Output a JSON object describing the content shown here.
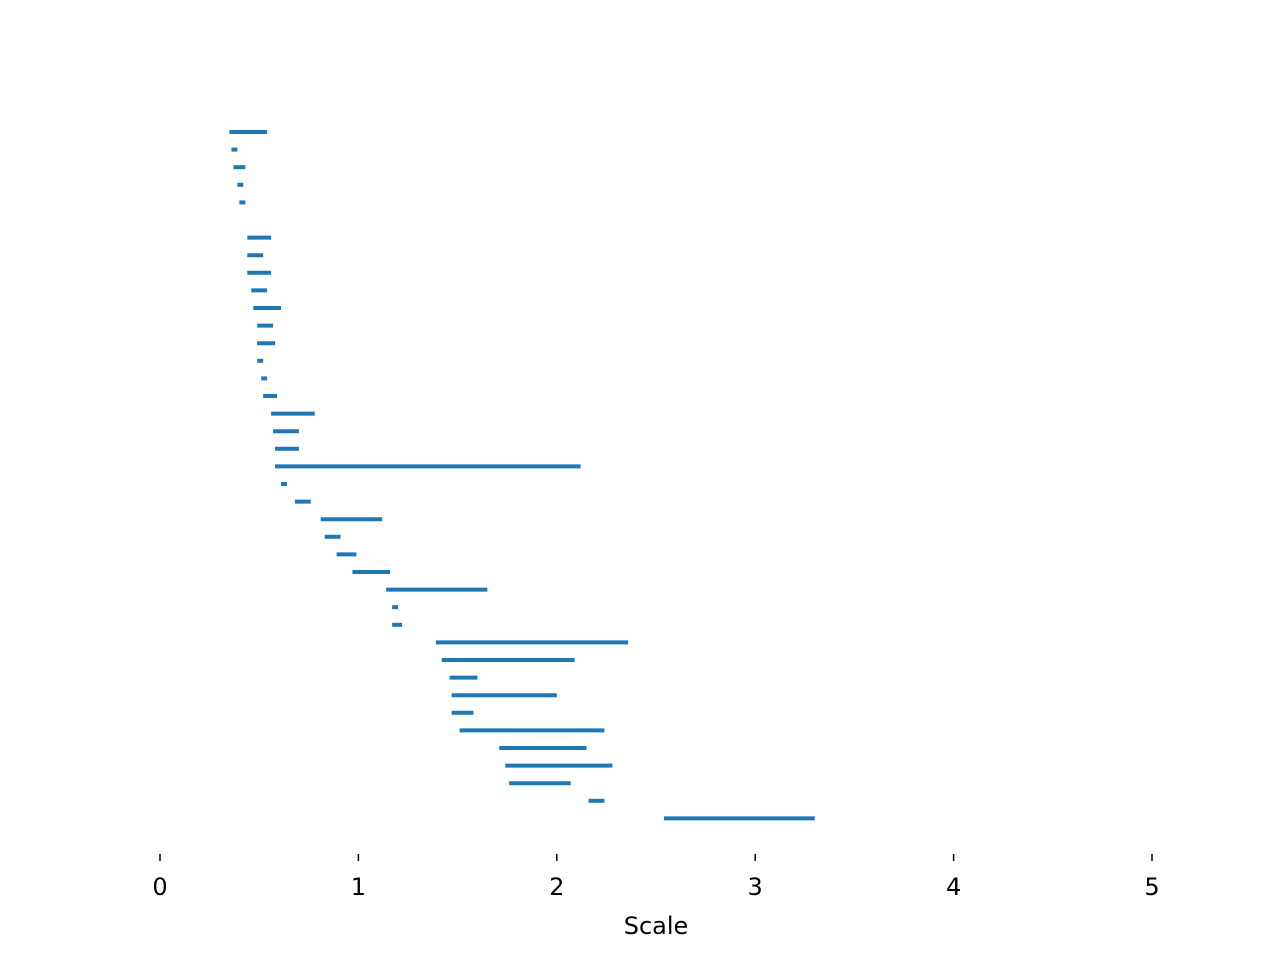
{
  "chart_data": {
    "type": "range",
    "x_label": "Scale",
    "color": "#1f77b4",
    "starts": [
      0.35,
      0.36,
      0.37,
      0.39,
      0.4,
      null,
      0.44,
      0.44,
      0.44,
      0.46,
      0.47,
      0.49,
      0.49,
      0.49,
      0.51,
      0.52,
      0.56,
      0.57,
      0.58,
      0.58,
      0.61,
      0.68,
      0.81,
      0.83,
      0.89,
      0.97,
      1.14,
      1.17,
      1.17,
      1.39,
      1.42,
      1.46,
      1.47,
      1.47,
      1.51,
      1.71,
      1.74,
      1.76,
      2.16,
      2.54
    ],
    "ends": [
      0.54,
      0.39,
      0.43,
      0.42,
      0.43,
      null,
      0.56,
      0.52,
      0.56,
      0.54,
      0.61,
      0.57,
      0.58,
      0.52,
      0.54,
      0.59,
      0.78,
      0.7,
      0.7,
      2.12,
      0.64,
      0.76,
      1.12,
      0.91,
      0.99,
      1.16,
      1.65,
      1.2,
      1.22,
      2.36,
      2.09,
      1.6,
      2.0,
      1.58,
      2.24,
      2.15,
      2.28,
      2.07,
      2.24,
      3.3
    ],
    "xlim": [
      0,
      5
    ],
    "xticks": [
      0,
      1,
      2,
      3,
      4,
      5
    ]
  }
}
